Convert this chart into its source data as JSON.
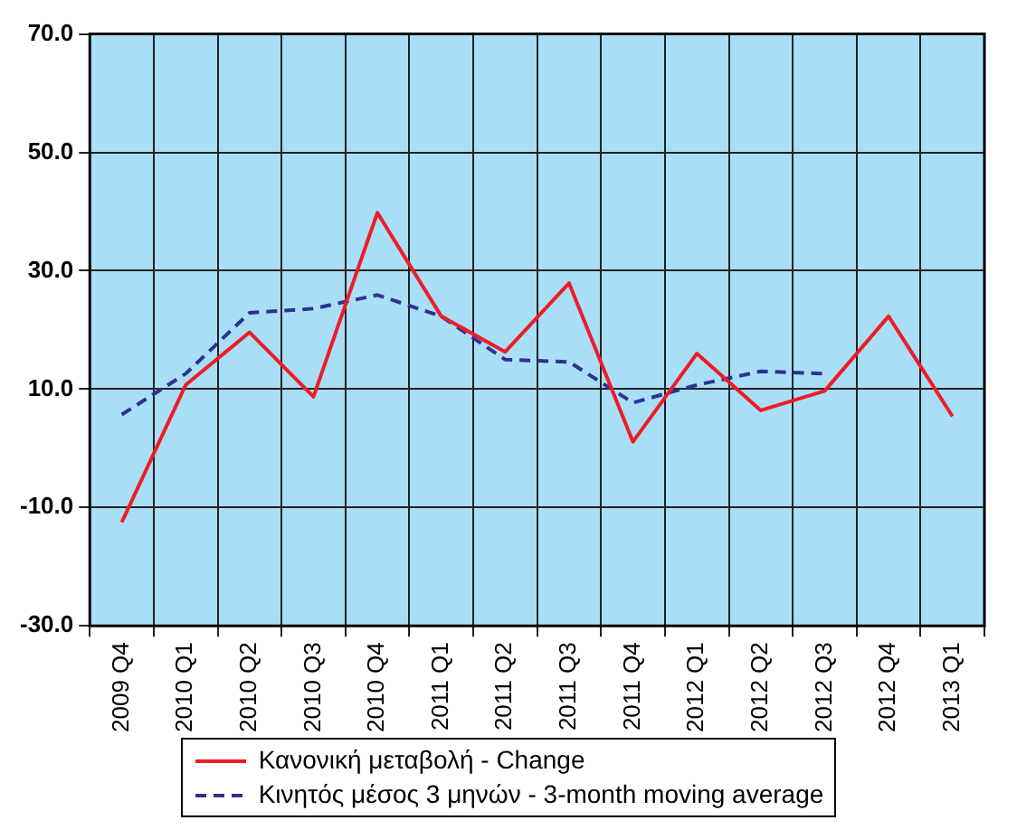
{
  "chart_data": {
    "type": "line",
    "categories": [
      "2009 Q4",
      "2010 Q1",
      "2010 Q2",
      "2010 Q3",
      "2010 Q4",
      "2011 Q1",
      "2011 Q2",
      "2011 Q3",
      "2011 Q4",
      "2012 Q1",
      "2012 Q2",
      "2012 Q3",
      "2012 Q4",
      "2013 Q1"
    ],
    "series": [
      {
        "name": "Κανονική μεταβολή - Change",
        "color": "#ee1c25",
        "line_style": "solid",
        "values": [
          -12.5,
          10.7,
          19.6,
          8.7,
          39.8,
          22.3,
          16.3,
          27.9,
          1.1,
          16.0,
          6.4,
          9.7,
          22.3,
          5.4
        ]
      },
      {
        "name": "Κινητός μέσος 3 μηνών - 3-month moving average",
        "color": "#2e3192",
        "line_style": "dashed",
        "values": [
          5.7,
          12.6,
          22.9,
          23.6,
          25.9,
          22.3,
          15.0,
          14.6,
          7.7,
          10.7,
          13.0,
          12.6,
          null,
          null
        ]
      }
    ],
    "ylim": [
      -30,
      70
    ],
    "yticks": [
      {
        "value": -30,
        "label": "-30.0"
      },
      {
        "value": -10,
        "label": "-10.0"
      },
      {
        "value": 10,
        "label": "10.0"
      },
      {
        "value": 30,
        "label": "30.0"
      },
      {
        "value": 50,
        "label": "50.0"
      },
      {
        "value": 70,
        "label": "70.0"
      }
    ],
    "grid": true,
    "legend": "bottom",
    "marker": "none"
  }
}
